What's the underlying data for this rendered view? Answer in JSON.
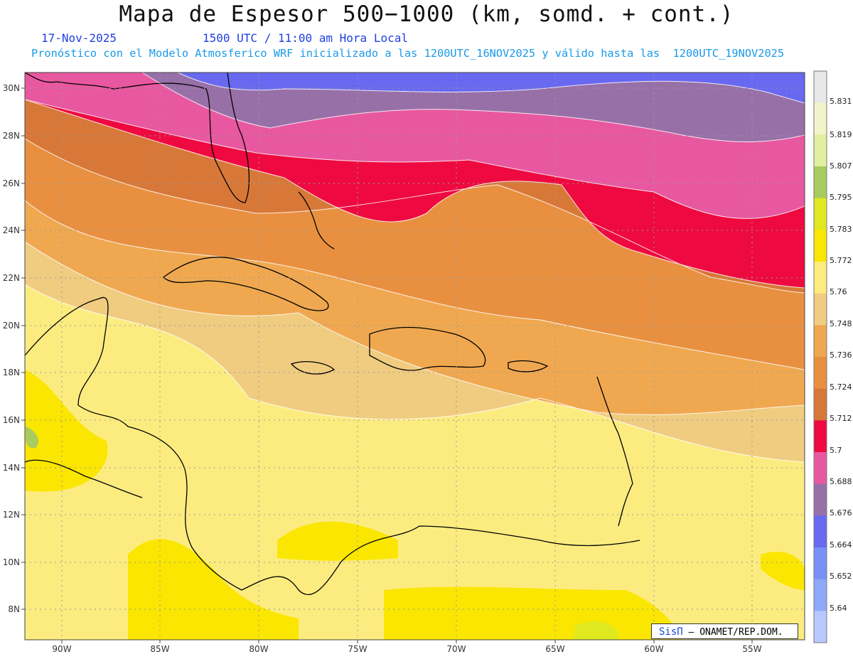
{
  "header": {
    "title": "Mapa de Espesor 500−1000 (km, somd. + cont.)",
    "date": "17-Nov-2025",
    "time": "1500 UTC / 11:00 am Hora Local",
    "subtitle": "Pronóstico con el Modelo Atmosferico WRF inicializado a las 1200UTC_16NOV2025 y válido hasta las  1200UTC_19NOV2025"
  },
  "map": {
    "lat_labels": [
      "30N",
      "28N",
      "26N",
      "24N",
      "22N",
      "20N",
      "18N",
      "16N",
      "14N",
      "12N",
      "10N",
      "8N"
    ],
    "lon_labels": [
      "90W",
      "85W",
      "80W",
      "75W",
      "70W",
      "65W",
      "60W",
      "55W"
    ],
    "grid": true
  },
  "colorbar": {
    "labels": [
      "5.831",
      "5.819",
      "5.807",
      "5.795",
      "5.783",
      "5.772",
      "5.76",
      "5.748",
      "5.736",
      "5.724",
      "5.712",
      "5.7",
      "5.688",
      "5.676",
      "5.664",
      "5.652",
      "5.64"
    ],
    "colors": [
      "#e8e8e8",
      "#f0f4c8",
      "#e0f0a0",
      "#a8cc60",
      "#e0e820",
      "#fae600",
      "#fcec80",
      "#f0cc80",
      "#f0a850",
      "#e89040",
      "#d87838",
      "#ee0a40",
      "#e858a0",
      "#9870a8",
      "#6868f0",
      "#7890f8",
      "#90a8f8",
      "#b8c8ff"
    ]
  },
  "credit": {
    "brand": "SisΠ",
    "text": "– ONAMET/REP.DOM."
  }
}
